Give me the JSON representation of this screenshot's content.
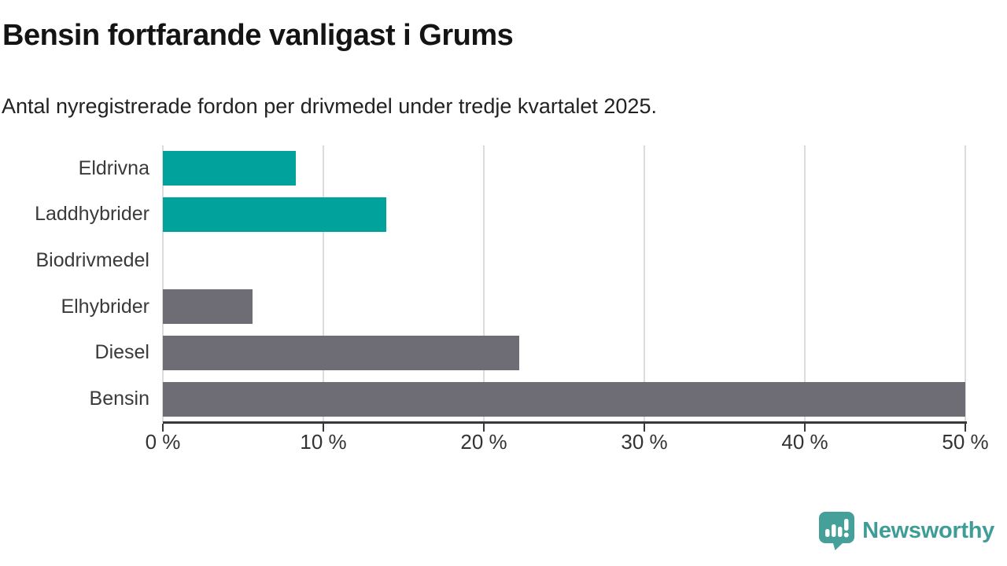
{
  "header": {
    "title": "Bensin fortfarande vanligast i Grums",
    "subtitle": "Antal nyregistrerade fordon per drivmedel under tredje kvartalet 2025."
  },
  "chart_data": {
    "type": "bar",
    "orientation": "horizontal",
    "title": "Bensin fortfarande vanligast i Grums",
    "subtitle": "Antal nyregistrerade fordon per drivmedel under tredje kvartalet 2025.",
    "categories": [
      "Eldrivna",
      "Laddhybrider",
      "Biodrivmedel",
      "Elhybrider",
      "Diesel",
      "Bensin"
    ],
    "values": [
      8.3,
      13.9,
      0,
      5.6,
      22.2,
      50
    ],
    "unit": "%",
    "bar_colors": [
      "#00a29b",
      "#00a29b",
      "#6e6d76",
      "#6e6d76",
      "#6e6d76",
      "#6e6d76"
    ],
    "xlabel": "",
    "ylabel": "",
    "xlim": [
      0,
      50
    ],
    "x_ticks": [
      0,
      10,
      20,
      30,
      40,
      50
    ],
    "x_tick_labels": [
      "0 %",
      "10 %",
      "20 %",
      "30 %",
      "40 %",
      "50 %"
    ],
    "grid": "vertical-only",
    "legend": "none"
  },
  "colors": {
    "accent_teal": "#00a29b",
    "bar_gray": "#6e6d76",
    "gridline": "#dcdcdc",
    "axis": "#383838",
    "title_text": "#141414",
    "body_text": "#333333",
    "logo_teal": "#45a09a",
    "logo_text_teal": "#3f9d97"
  },
  "footer": {
    "logo_text": "Newsworthy",
    "logo_icon": "speech-bubble-bar-chart-icon"
  }
}
